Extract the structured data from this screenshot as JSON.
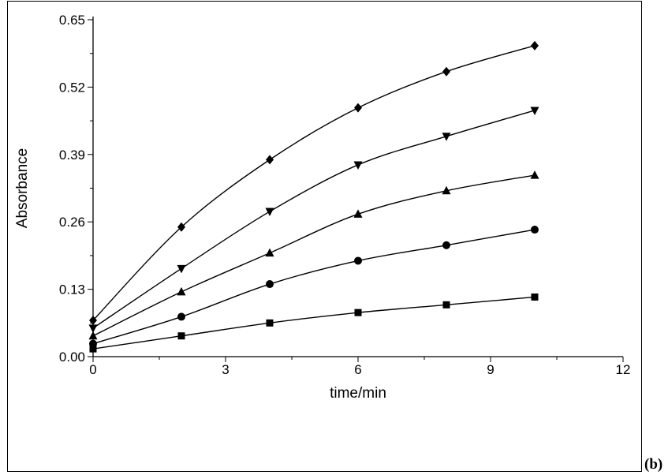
{
  "panel_label": "(b)",
  "chart_data": {
    "type": "line",
    "xlabel": "time/min",
    "ylabel": "Absorbance",
    "xlim": [
      0,
      12
    ],
    "ylim": [
      0,
      0.65
    ],
    "xticks": [
      "0",
      "3",
      "6",
      "9",
      "12"
    ],
    "yticks": [
      "0.00",
      "0.13",
      "0.26",
      "0.39",
      "0.52",
      "0.65"
    ],
    "grid": false,
    "x": [
      0,
      2,
      4,
      6,
      8,
      10
    ],
    "series": [
      {
        "marker": "square",
        "values": [
          0.015,
          0.04,
          0.065,
          0.085,
          0.1,
          0.115
        ]
      },
      {
        "marker": "circle",
        "values": [
          0.025,
          0.077,
          0.14,
          0.185,
          0.215,
          0.245
        ]
      },
      {
        "marker": "triangle-up",
        "values": [
          0.04,
          0.125,
          0.2,
          0.275,
          0.32,
          0.35
        ]
      },
      {
        "marker": "triangle-down",
        "values": [
          0.055,
          0.17,
          0.28,
          0.37,
          0.425,
          0.475
        ]
      },
      {
        "marker": "diamond",
        "values": [
          0.07,
          0.25,
          0.38,
          0.48,
          0.55,
          0.6
        ]
      }
    ]
  }
}
